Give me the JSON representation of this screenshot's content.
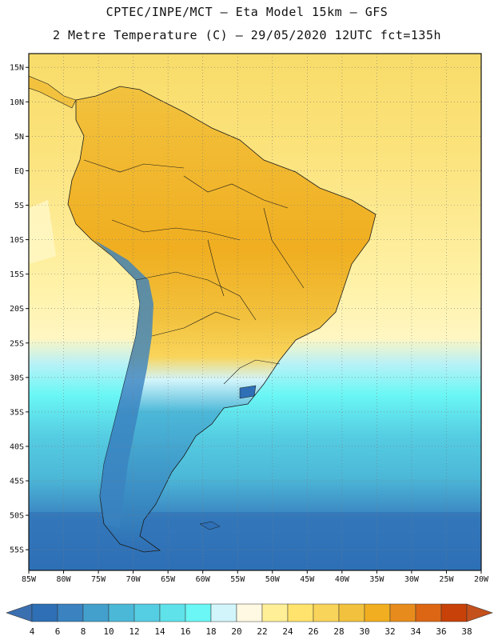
{
  "header": {
    "line1": "CPTEC/INPE/MCT –  Eta Model 15km – GFS",
    "line2": "2 Metre Temperature (C) – 29/05/2020 12UTC fct=135h"
  },
  "map": {
    "region": "South America",
    "lon_range": [
      -85,
      -20
    ],
    "lat_range": [
      -58,
      17
    ],
    "grid": true,
    "lon_ticks": [
      "85W",
      "80W",
      "75W",
      "70W",
      "65W",
      "60W",
      "55W",
      "50W",
      "45W",
      "40W",
      "35W",
      "30W",
      "25W",
      "20W"
    ],
    "lat_ticks": [
      "15N",
      "10N",
      "5N",
      "EQ",
      "5S",
      "10S",
      "15S",
      "20S",
      "25S",
      "30S",
      "35S",
      "40S",
      "45S",
      "50S",
      "55S"
    ]
  },
  "colorbar": {
    "labels": [
      "4",
      "6",
      "8",
      "10",
      "12",
      "14",
      "16",
      "18",
      "20",
      "22",
      "24",
      "26",
      "28",
      "30",
      "32",
      "34",
      "36",
      "38"
    ],
    "colors": [
      "#2e6fb5",
      "#3a82c0",
      "#43a0cc",
      "#4cb8d8",
      "#55cde2",
      "#5fe2ea",
      "#6af7f5",
      "#d2f5fb",
      "#fff8e2",
      "#ffef96",
      "#ffe36c",
      "#f9d45a",
      "#f2c23e",
      "#f0ae20",
      "#e78c1c",
      "#dc6614",
      "#c74108",
      "#bf4a14"
    ],
    "under_color": "#3a6fb0",
    "over_color": "#c4501c"
  }
}
